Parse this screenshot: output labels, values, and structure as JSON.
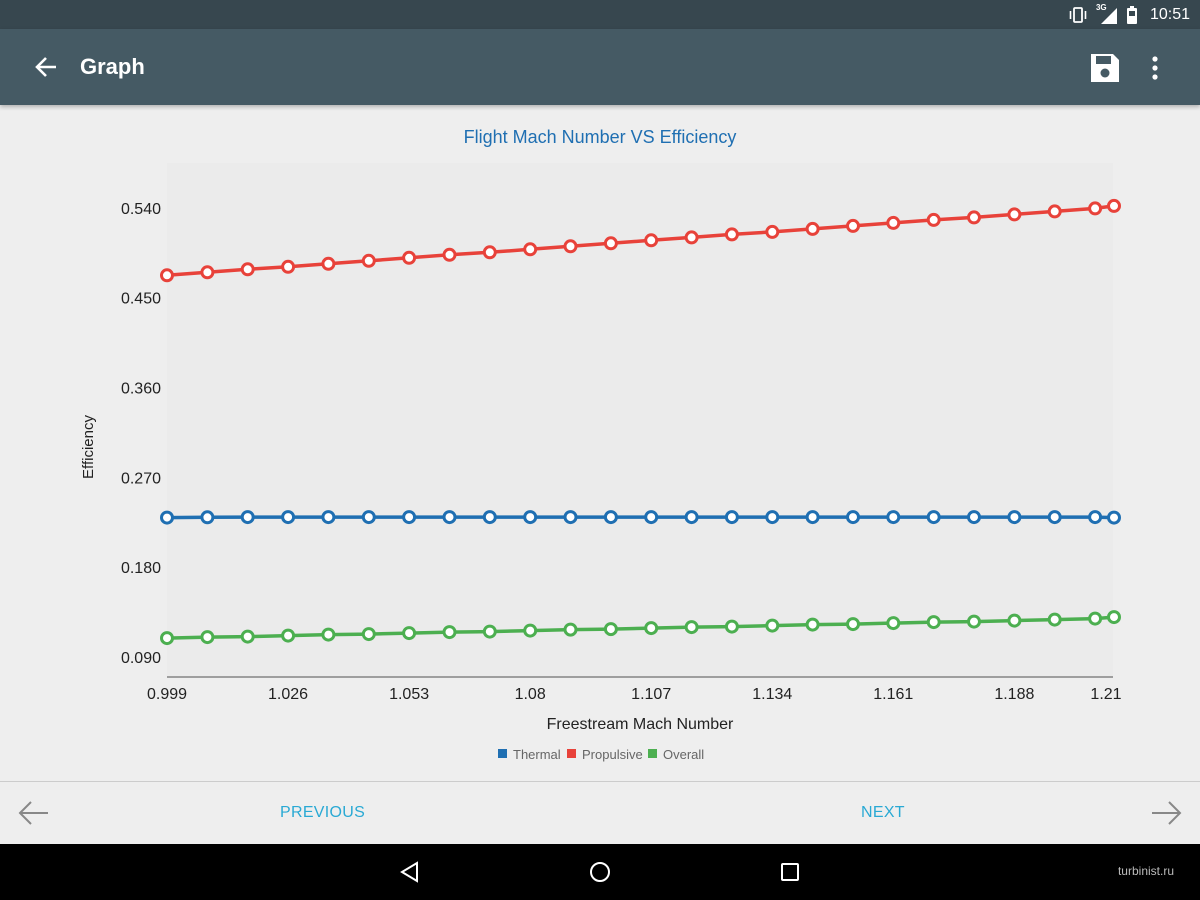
{
  "status_bar": {
    "network_label": "3G",
    "time": "10:51",
    "icons": [
      "vibrate-icon",
      "cell-signal-icon",
      "battery-icon"
    ]
  },
  "app_bar": {
    "title": "Graph",
    "icons": [
      "back-arrow-icon",
      "save-icon",
      "overflow-menu-icon"
    ]
  },
  "chart_data": {
    "type": "line",
    "title": "Flight Mach Number VS Efficiency",
    "xlabel": "Freestream Mach Number",
    "ylabel": "Efficiency",
    "x_ticks": [
      "0.999",
      "1.026",
      "1.053",
      "1.08",
      "1.107",
      "1.134",
      "1.161",
      "1.188",
      "1.21"
    ],
    "y_ticks": [
      "0.090",
      "0.180",
      "0.270",
      "0.360",
      "0.450",
      "0.540"
    ],
    "xlim": [
      0.999,
      1.21
    ],
    "ylim": [
      0.07,
      0.585
    ],
    "x": [
      0.999,
      1.008,
      1.017,
      1.026,
      1.035,
      1.044,
      1.053,
      1.062,
      1.071,
      1.08,
      1.089,
      1.098,
      1.107,
      1.116,
      1.125,
      1.134,
      1.143,
      1.152,
      1.161,
      1.17,
      1.179,
      1.188,
      1.197,
      1.206,
      1.215
    ],
    "series": [
      {
        "name": "Thermal",
        "color": "#1f6fb2",
        "values": [
          0.2297,
          0.23,
          0.2302,
          0.2302,
          0.2302,
          0.2302,
          0.2302,
          0.2302,
          0.2302,
          0.2302,
          0.2302,
          0.2302,
          0.2302,
          0.2302,
          0.2302,
          0.2302,
          0.2302,
          0.2302,
          0.2302,
          0.2302,
          0.2302,
          0.2302,
          0.2302,
          0.2302,
          0.2297
        ]
      },
      {
        "name": "Propulsive",
        "color": "#e8423a",
        "values": [
          0.4725,
          0.4755,
          0.4785,
          0.481,
          0.484,
          0.487,
          0.49,
          0.493,
          0.4955,
          0.4985,
          0.5015,
          0.5045,
          0.5075,
          0.5105,
          0.5135,
          0.516,
          0.519,
          0.522,
          0.525,
          0.528,
          0.5305,
          0.5335,
          0.5365,
          0.5395,
          0.542
        ]
      },
      {
        "name": "Overall",
        "color": "#4caf50",
        "values": [
          0.109,
          0.11,
          0.1105,
          0.1115,
          0.1125,
          0.113,
          0.114,
          0.115,
          0.1155,
          0.1165,
          0.1175,
          0.118,
          0.119,
          0.12,
          0.1205,
          0.1215,
          0.1225,
          0.123,
          0.124,
          0.125,
          0.1255,
          0.1265,
          0.1275,
          0.1285,
          0.13
        ]
      }
    ],
    "grid": false,
    "legend_position": "bottom-center"
  },
  "bottom_bar": {
    "previous_label": "PREVIOUS",
    "next_label": "NEXT"
  },
  "watermark": "turbinist.ru"
}
